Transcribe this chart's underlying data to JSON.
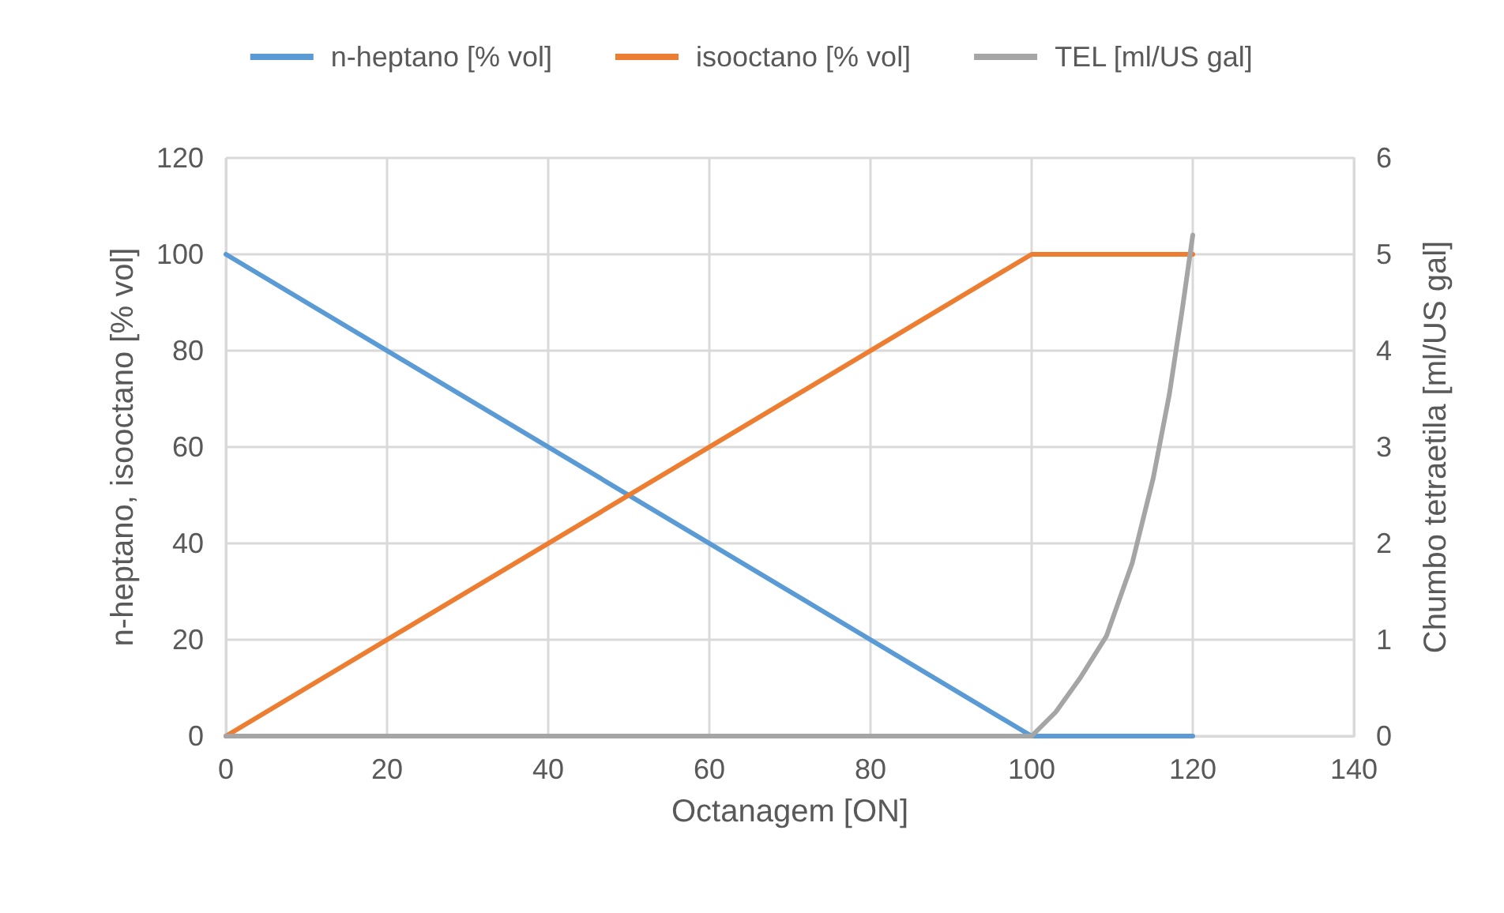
{
  "chart_data": {
    "type": "line",
    "xlabel": "Octanagem [ON]",
    "ylabel": "n-heptano, isooctano [% vol]",
    "y2label": "Chumbo tetraetila [ml/US gal]",
    "series": [
      {
        "name": "n-heptano [% vol]",
        "color": "#5b9bd5",
        "x": [
          0,
          100,
          120
        ],
        "values": [
          100,
          0,
          0
        ]
      },
      {
        "name": "isooctano [% vol]",
        "color": "#ed7d31",
        "x": [
          0,
          100,
          120
        ],
        "values": [
          0,
          100,
          100
        ]
      },
      {
        "name": "TEL [ml/US gal]",
        "color": "#a5a5a5",
        "axis": "y2",
        "x": [
          0,
          100,
          103,
          106,
          109.3,
          112.5,
          115.1,
          117.1,
          118.7,
          120
        ],
        "values": [
          0,
          0,
          0.25,
          0.6,
          1.04,
          1.8,
          2.68,
          3.55,
          4.43,
          5.2
        ]
      }
    ],
    "xlim": [
      0,
      140
    ],
    "xticks": [
      0,
      20,
      40,
      60,
      80,
      100,
      120,
      140
    ],
    "ylim": [
      0,
      120
    ],
    "yticks": [
      0,
      20,
      40,
      60,
      80,
      100,
      120
    ],
    "y2lim": [
      0,
      6
    ],
    "y2ticks": [
      0,
      1,
      2,
      3,
      4,
      5,
      6
    ],
    "grid": true,
    "legend": "top",
    "marker": "none",
    "line_style": "solid"
  }
}
